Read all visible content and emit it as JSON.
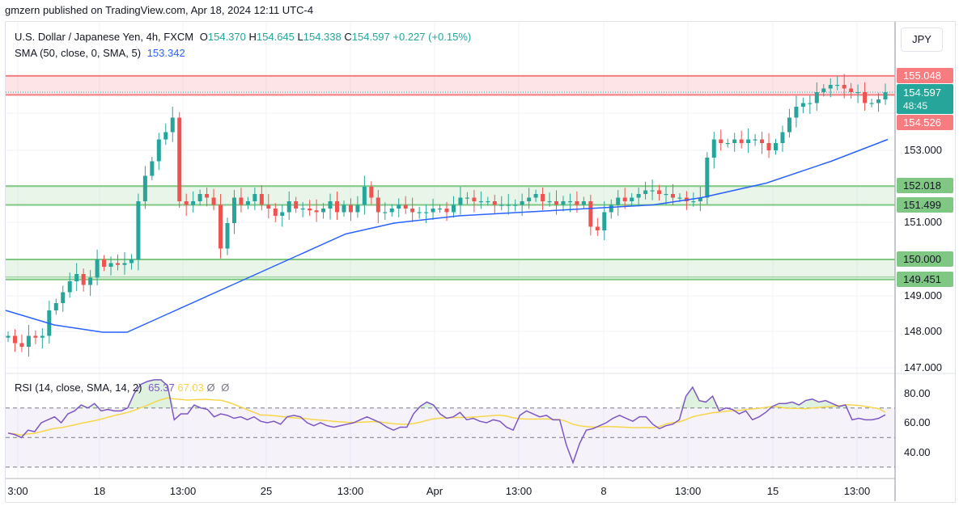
{
  "header": {
    "published": "gmzern published on TradingView.com, Apr 18, 2024 12:11 UTC-4"
  },
  "legend": {
    "symbol": "U.S. Dollar / Japanese Yen, 4h, FXCM",
    "o_label": "O",
    "o": "154.370",
    "h_label": "H",
    "h": "154.645",
    "l_label": "L",
    "l": "154.338",
    "c_label": "C",
    "c": "154.597",
    "change": "+0.227 (+0.15%)",
    "sma_label": "SMA (50, close, 0, SMA, 5)",
    "sma_value": "153.342",
    "rsi_label": "RSI (14, close, SMA, 14, 2)",
    "rsi_value": "65.37",
    "rsi_ma_value": "67.03",
    "rsi_extra1": "Ø",
    "rsi_extra2": "Ø"
  },
  "currency_button": "JPY",
  "price_axis": {
    "ticks": [
      "153.000",
      "151.000",
      "149.000",
      "148.000",
      "147.000"
    ],
    "tags": {
      "resistance_top": "155.048",
      "last_price": "154.597",
      "countdown": "48:45",
      "resistance_bottom": "154.526",
      "zone1_top": "152.018",
      "zone1_bottom": "151.499",
      "zone2_top": "150.000",
      "zone2_bottom": "149.451"
    }
  },
  "rsi_axis": {
    "ticks": [
      "80.00",
      "60.00",
      "40.00"
    ]
  },
  "time_axis": {
    "ticks": [
      "3:00",
      "18",
      "13:00",
      "25",
      "13:00",
      "Apr",
      "13:00",
      "8",
      "13:00",
      "15",
      "13:00"
    ]
  },
  "colors": {
    "up": "#26a69a",
    "down": "#ef5350",
    "sma": "#2962ff",
    "rsi": "#7e57c2",
    "rsi_ma": "#f7d64b",
    "resistance_zone": "#f23645",
    "support_zone": "#4caf50"
  },
  "chart_data": {
    "type": "candlestick",
    "title": "U.S. Dollar / Japanese Yen, 4h, FXCM",
    "ylabel": "JPY",
    "ylim": [
      146.8,
      155.9
    ],
    "grid": true,
    "x_ticks": [
      "3:00",
      "18",
      "13:00",
      "25",
      "13:00",
      "Apr",
      "13:00",
      "8",
      "13:00",
      "15",
      "13:00"
    ],
    "y_ticks": [
      147.0,
      148.0,
      149.0,
      151.0,
      153.0
    ],
    "last_bar": {
      "open": 154.37,
      "high": 154.645,
      "low": 154.338,
      "close": 154.597,
      "change": 0.227,
      "change_pct": 0.15
    },
    "zones": [
      {
        "name": "resistance",
        "top": 155.048,
        "bottom": 154.526,
        "color": "red"
      },
      {
        "name": "support-1",
        "top": 152.018,
        "bottom": 151.499,
        "color": "green"
      },
      {
        "name": "support-2",
        "top": 150.0,
        "bottom": 149.451,
        "color": "green"
      }
    ],
    "candles_close_approx": [
      147.9,
      147.7,
      147.6,
      147.9,
      147.85,
      147.9,
      148.6,
      148.8,
      149.1,
      149.4,
      149.6,
      149.3,
      149.5,
      150.0,
      149.8,
      149.9,
      149.85,
      149.9,
      150.0,
      151.6,
      152.3,
      152.7,
      153.3,
      153.5,
      153.9,
      151.6,
      151.5,
      151.6,
      151.8,
      151.7,
      151.5,
      150.3,
      151.0,
      151.7,
      151.5,
      151.6,
      151.8,
      151.5,
      151.4,
      151.2,
      151.3,
      151.6,
      151.4,
      151.4,
      151.35,
      151.3,
      151.4,
      151.6,
      151.3,
      151.5,
      151.3,
      151.5,
      152.0,
      151.7,
      151.3,
      151.3,
      151.4,
      151.5,
      151.4,
      151.3,
      151.3,
      151.3,
      151.4,
      151.4,
      151.3,
      151.5,
      151.7,
      151.7,
      151.6,
      151.6,
      151.6,
      151.5,
      151.5,
      151.5,
      151.5,
      151.6,
      151.7,
      151.8,
      151.6,
      151.6,
      151.5,
      151.6,
      151.6,
      151.5,
      151.6,
      150.9,
      150.8,
      151.3,
      151.5,
      151.7,
      151.6,
      151.7,
      151.8,
      151.9,
      151.9,
      151.8,
      151.8,
      151.7,
      151.7,
      151.6,
      151.6,
      151.7,
      152.8,
      153.3,
      153.2,
      153.2,
      153.3,
      153.2,
      153.3,
      153.3,
      153.2,
      153.0,
      153.2,
      153.5,
      153.9,
      154.2,
      154.3,
      154.3,
      154.6,
      154.7,
      154.8,
      154.8,
      154.7,
      154.6,
      154.6,
      154.3,
      154.3,
      154.4,
      154.597
    ],
    "sma": {
      "name": "SMA (50, close, 0, SMA, 5)",
      "last": 153.342,
      "points_approx": [
        [
          0,
          148.6
        ],
        [
          60,
          148.2
        ],
        [
          120,
          148.0
        ],
        [
          150,
          148.0
        ],
        [
          200,
          148.5
        ],
        [
          280,
          149.3
        ],
        [
          360,
          150.1
        ],
        [
          420,
          150.7
        ],
        [
          480,
          151.0
        ],
        [
          560,
          151.2
        ],
        [
          640,
          151.3
        ],
        [
          720,
          151.4
        ],
        [
          800,
          151.5
        ],
        [
          860,
          151.7
        ],
        [
          940,
          152.1
        ],
        [
          1020,
          152.7
        ],
        [
          1090,
          153.3
        ]
      ]
    },
    "rsi": {
      "name": "RSI (14, close, SMA, 14, 2)",
      "last": 65.37,
      "ma_last": 67.03,
      "bands": [
        70,
        50,
        30
      ],
      "ylim": [
        25,
        92
      ],
      "y_ticks": [
        80,
        60,
        40
      ]
    }
  }
}
